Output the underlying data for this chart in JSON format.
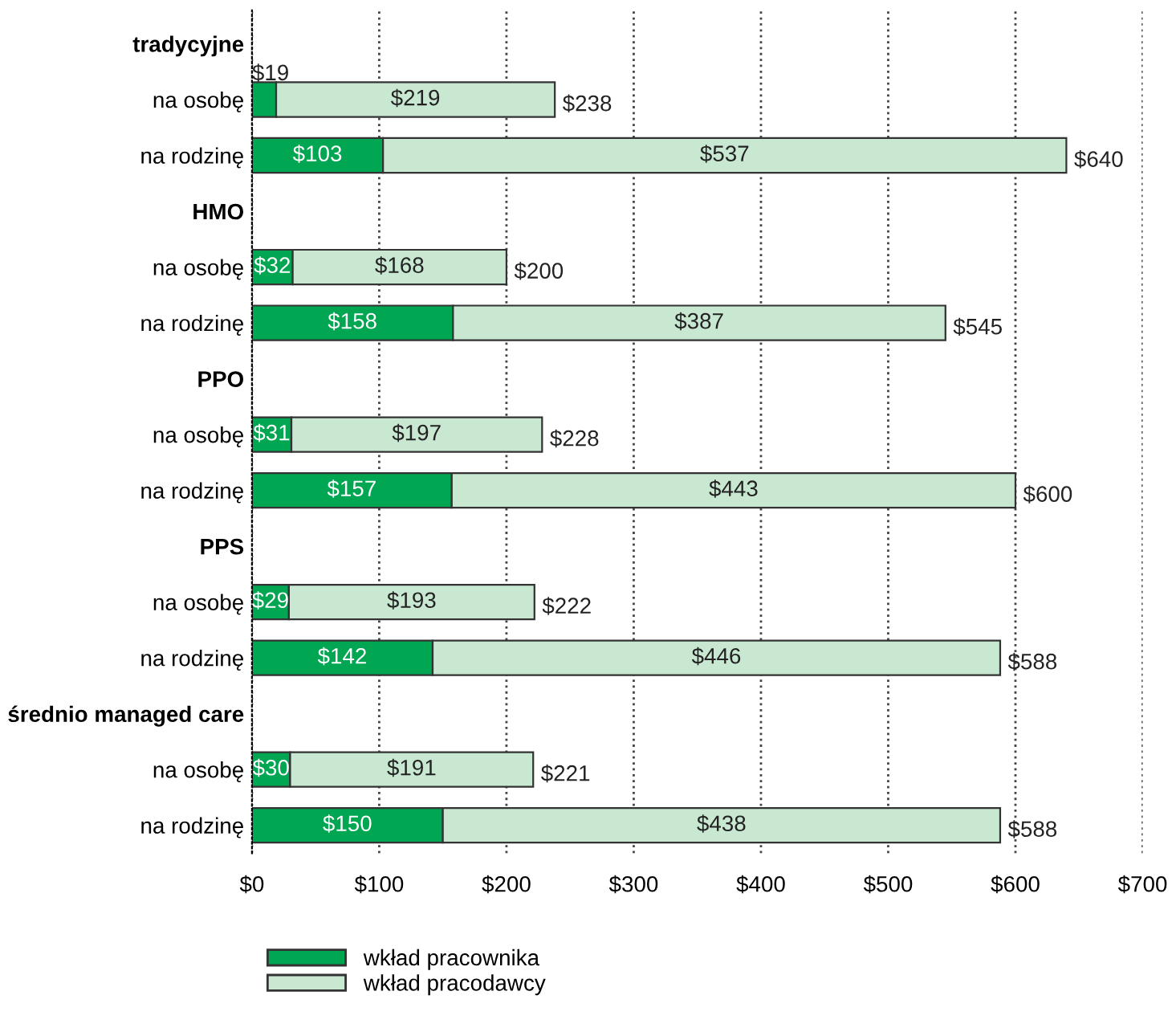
{
  "chart_data": {
    "type": "bar",
    "orientation": "horizontal",
    "stacked": true,
    "categories": [
      "tradycyjne",
      "na osobę",
      "na rodzinę",
      "HMO",
      "na osobę",
      "na rodzinę",
      "PPO",
      "na osobę",
      "na rodzinę",
      "PPS",
      "na osobę",
      "na rodzinę",
      "średnio managed care",
      "na osobę",
      "na rodzinę"
    ],
    "series": [
      {
        "name": "wkład pracownika",
        "color": "#00a651",
        "values": [
          null,
          19,
          103,
          null,
          32,
          158,
          null,
          31,
          157,
          null,
          29,
          142,
          null,
          30,
          150
        ],
        "value_labels": [
          null,
          "$19",
          "$103",
          null,
          "$32",
          "$158",
          null,
          "$31",
          "$157",
          null,
          "$29",
          "$142",
          null,
          "$30",
          "$150"
        ]
      },
      {
        "name": "wkład pracodawcy",
        "color": "#c9e8d2",
        "values": [
          null,
          219,
          537,
          null,
          168,
          387,
          null,
          197,
          443,
          null,
          193,
          446,
          null,
          191,
          438
        ],
        "value_labels": [
          null,
          "$219",
          "$537",
          null,
          "$168",
          "$387",
          null,
          "$197",
          "$443",
          null,
          "$193",
          "$446",
          null,
          "$191",
          "$438"
        ]
      }
    ],
    "totals": [
      null,
      "$238",
      "$640",
      null,
      "$200",
      "$545",
      null,
      "$228",
      "$600",
      null,
      "$222",
      "$588",
      null,
      "$221",
      "$588"
    ],
    "xlim": [
      0,
      700
    ],
    "xticks": [
      {
        "value": 0,
        "label": "$0"
      },
      {
        "value": 100,
        "label": "$100"
      },
      {
        "value": 200,
        "label": "$200"
      },
      {
        "value": 300,
        "label": "$300"
      },
      {
        "value": 400,
        "label": "$400"
      },
      {
        "value": 500,
        "label": "$500"
      },
      {
        "value": 600,
        "label": "$600"
      },
      {
        "value": 700,
        "label": "$700"
      }
    ],
    "grid": "x",
    "legend": "bottom"
  }
}
